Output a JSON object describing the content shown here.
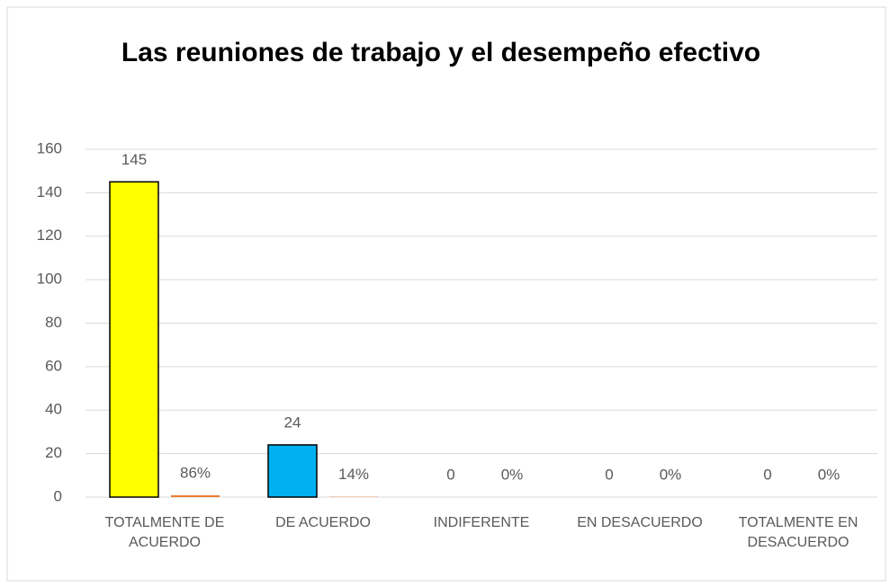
{
  "chart_data": {
    "type": "bar",
    "title": "Las reuniones de trabajo y el desempeño efectivo",
    "categories": [
      "TOTALMENTE DE ACUERDO",
      "DE ACUERDO",
      "INDIFERENTE",
      "EN DESACUERDO",
      "TOTALMENTE EN DESACUERDO"
    ],
    "series": [
      {
        "colors": [
          "#ffff00",
          "#00b0f0",
          "#00b0f0",
          "#00b0f0",
          "#00b0f0"
        ],
        "values": [
          145,
          24,
          0,
          0,
          0
        ]
      },
      {
        "color": "#ed7d31",
        "values": [
          0.86,
          0.14,
          0,
          0,
          0
        ],
        "value_labels": [
          "86%",
          "14%",
          "0%",
          "0%",
          "0%"
        ]
      }
    ],
    "ylim": [
      0,
      160
    ],
    "yticks": [
      0,
      20,
      40,
      60,
      80,
      100,
      120,
      140,
      160
    ],
    "grid": true
  }
}
